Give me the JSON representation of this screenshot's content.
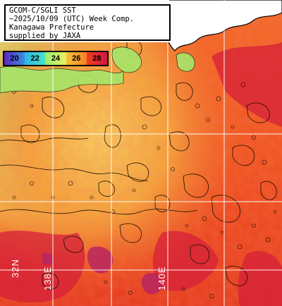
{
  "caption": {
    "line1": "GCOM-C/SGLI SST",
    "line2": "~2025/10/09 (UTC) Week Comp.",
    "line3": "Kanagawa Prefecture",
    "line4": "supplied by JAXA"
  },
  "colorbar": {
    "ticks": [
      "20",
      "22",
      "24",
      "26",
      "28"
    ],
    "colors": [
      "#6a2fd6",
      "#26c8e6",
      "#c8f060",
      "#f7b02a",
      "#e8182c"
    ]
  },
  "grid": {
    "lat_label": "32N",
    "lon_labels": [
      "138E",
      "140E"
    ]
  },
  "colors": {
    "land": "#ffffff",
    "coast": "#000000",
    "warm_sea": "#f04a1c",
    "hot_sea": "#d61e3c",
    "cool_sea": "#b8f06a",
    "mid_sea": "#f4b640",
    "grid": "#ffffff"
  }
}
